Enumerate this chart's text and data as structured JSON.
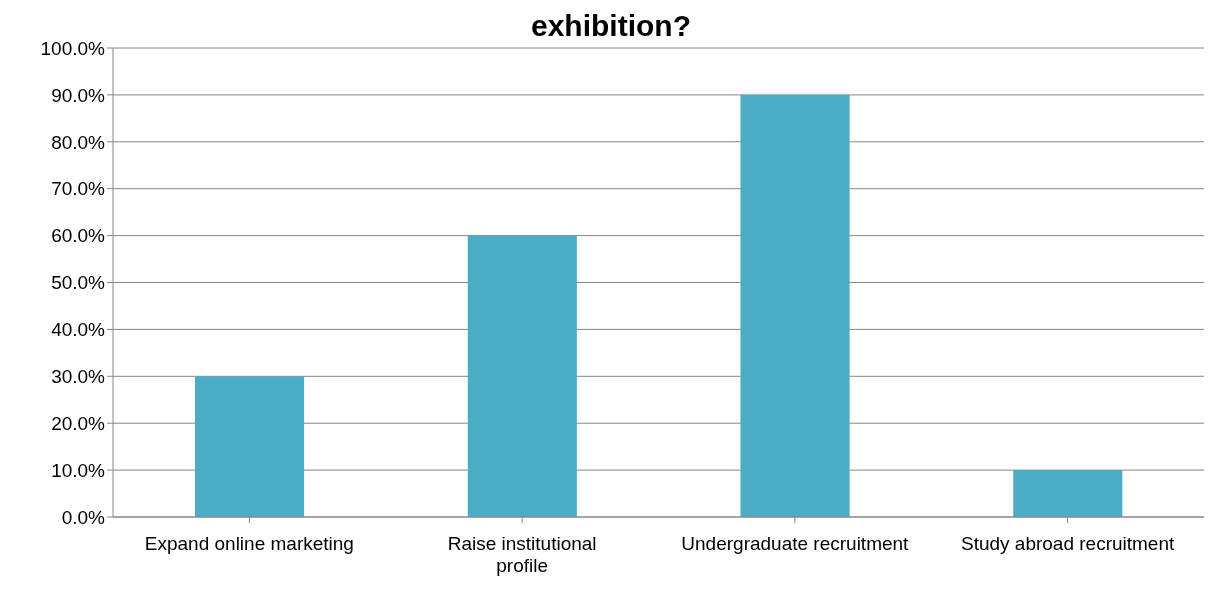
{
  "chart_data": {
    "type": "bar",
    "title": "exhibition?",
    "categories": [
      "Expand online marketing",
      "Raise institutional profile",
      "Undergraduate recruitment",
      "Study abroad recruitment"
    ],
    "values": [
      30,
      60,
      90,
      10
    ],
    "color": "#4bacc6",
    "ylim": [
      0,
      100
    ],
    "yticks": [
      {
        "value": 0,
        "label": "0.0%"
      },
      {
        "value": 10,
        "label": "10.0%"
      },
      {
        "value": 20,
        "label": "20.0%"
      },
      {
        "value": 30,
        "label": "30.0%"
      },
      {
        "value": 40,
        "label": "40.0%"
      },
      {
        "value": 50,
        "label": "50.0%"
      },
      {
        "value": 60,
        "label": "60.0%"
      },
      {
        "value": 70,
        "label": "70.0%"
      },
      {
        "value": 80,
        "label": "80.0%"
      },
      {
        "value": 90,
        "label": "90.0%"
      },
      {
        "value": 100,
        "label": "100.0%"
      }
    ],
    "grid": "y"
  }
}
